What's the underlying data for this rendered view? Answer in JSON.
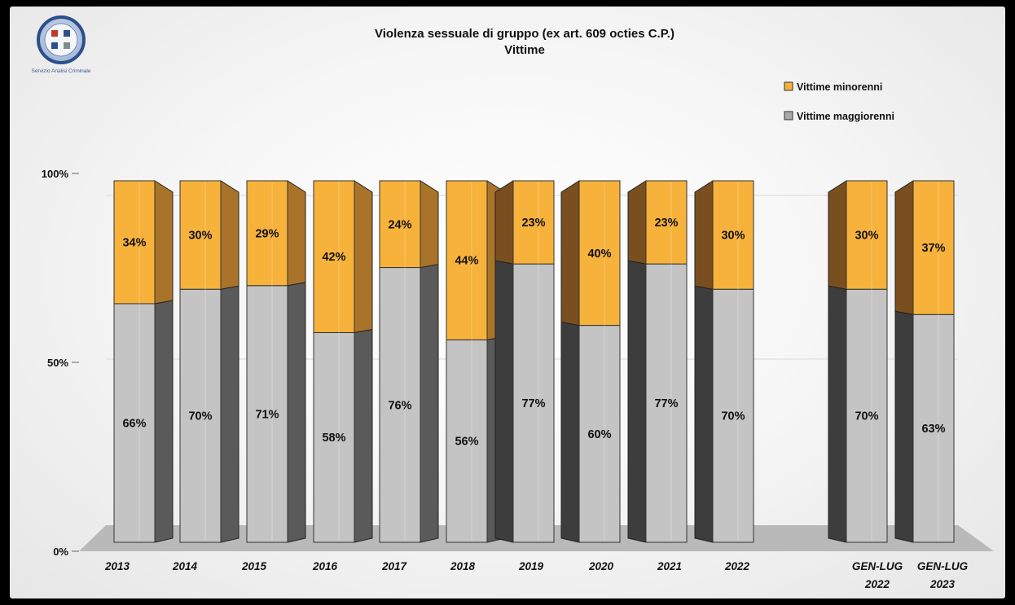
{
  "logo": {
    "caption": "Servizio Analisi Criminale"
  },
  "chart_data": {
    "type": "bar",
    "stacked": true,
    "percent_stacked": true,
    "title": "Violenza sessuale di gruppo (ex art. 609 octies C.P.)",
    "subtitle": "Vittime",
    "xlabel": "",
    "ylabel": "",
    "ylim": [
      0,
      100
    ],
    "y_ticks": [
      "0%",
      "50%",
      "100%"
    ],
    "grid": true,
    "legend_position": "top-right",
    "categories": [
      "2013",
      "2014",
      "2015",
      "2016",
      "2017",
      "2018",
      "2019",
      "2020",
      "2021",
      "2022",
      "GEN-LUG 2022",
      "GEN-LUG 2023"
    ],
    "series": [
      {
        "name": "Vittime maggiorenni",
        "color": "#c4c4c4",
        "values": [
          66,
          70,
          71,
          58,
          76,
          56,
          77,
          60,
          77,
          70,
          70,
          63
        ],
        "labels": [
          "66%",
          "70%",
          "71%",
          "58%",
          "76%",
          "56%",
          "77%",
          "60%",
          "77%",
          "70%",
          "70%",
          "63%"
        ]
      },
      {
        "name": "Vittime minorenni",
        "color": "#f7b23b",
        "values": [
          34,
          30,
          29,
          42,
          24,
          44,
          23,
          40,
          23,
          30,
          30,
          37
        ],
        "labels": [
          "34%",
          "30%",
          "29%",
          "42%",
          "24%",
          "44%",
          "23%",
          "40%",
          "23%",
          "30%",
          "30%",
          "37%"
        ]
      }
    ],
    "legend_order": [
      "Vittime minorenni",
      "Vittime maggiorenni"
    ]
  }
}
